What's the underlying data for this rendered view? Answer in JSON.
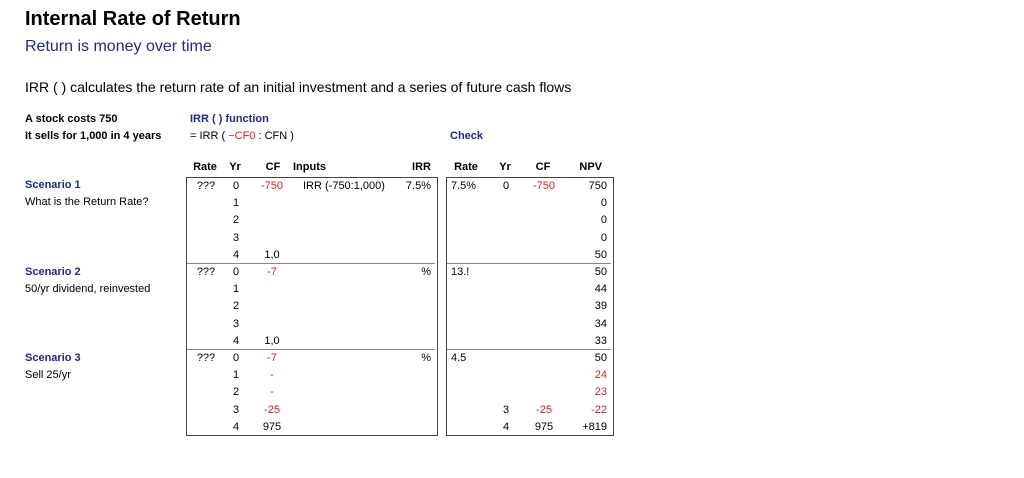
{
  "title": "Internal Rate of Return",
  "subtitle": "Return is money over time",
  "description": "IRR ( ) calculates the return rate of an initial investment and a series of future cash flows",
  "setup": {
    "line1": "A stock costs 750",
    "line2": "It sells for 1,000 in 4 years"
  },
  "function": {
    "heading": "IRR ( ) function",
    "formula_prefix": "= IRR ( ",
    "formula_arg": "−CF0",
    "formula_suffix": " : CFN )"
  },
  "check_heading": "Check",
  "left_headers": [
    "Rate",
    "Yr",
    "CF",
    "Inputs",
    "IRR"
  ],
  "right_headers": [
    "Rate",
    "Yr",
    "CF",
    "NPV"
  ],
  "scenarios": [
    {
      "name": "Scenario 1",
      "desc": "What is the Return Rate?"
    },
    {
      "name": "Scenario 2",
      "desc": "50/yr dividend, reinvested"
    },
    {
      "name": "Scenario 3",
      "desc": "Sell 25/yr"
    }
  ],
  "left_rows": [
    {
      "rate": "???",
      "yr": "0",
      "cf": "-750",
      "inputs": "IRR (-750:1,000)",
      "irr": "7.5%"
    },
    {
      "rate": "",
      "yr": "1",
      "cf": "",
      "inputs": "",
      "irr": ""
    },
    {
      "rate": "",
      "yr": "2",
      "cf": "",
      "inputs": "",
      "irr": ""
    },
    {
      "rate": "",
      "yr": "3",
      "cf": "",
      "inputs": "",
      "irr": ""
    },
    {
      "rate": "",
      "yr": "4",
      "cf": "1,0",
      "inputs": "",
      "irr": ""
    },
    {
      "rate": "???",
      "yr": "0",
      "cf": "-7",
      "inputs": "",
      "irr": "%"
    },
    {
      "rate": "",
      "yr": "1",
      "cf": "",
      "inputs": "",
      "irr": ""
    },
    {
      "rate": "",
      "yr": "2",
      "cf": "",
      "inputs": "",
      "irr": ""
    },
    {
      "rate": "",
      "yr": "3",
      "cf": "",
      "inputs": "",
      "irr": ""
    },
    {
      "rate": "",
      "yr": "4",
      "cf": "1,0",
      "inputs": "",
      "irr": ""
    },
    {
      "rate": "???",
      "yr": "0",
      "cf": "-7",
      "inputs": "",
      "irr": "%"
    },
    {
      "rate": "",
      "yr": "1",
      "cf": "-",
      "inputs": "",
      "irr": ""
    },
    {
      "rate": "",
      "yr": "2",
      "cf": "-",
      "inputs": "",
      "irr": ""
    },
    {
      "rate": "",
      "yr": "3",
      "cf": "-25",
      "inputs": "",
      "irr": ""
    },
    {
      "rate": "",
      "yr": "4",
      "cf": "975",
      "inputs": "",
      "irr": ""
    }
  ],
  "right_rows": [
    {
      "rate": "7.5%",
      "yr": "0",
      "cf": "-750",
      "npv": "750"
    },
    {
      "rate": "",
      "yr": "",
      "cf": "",
      "npv": "0"
    },
    {
      "rate": "",
      "yr": "",
      "cf": "",
      "npv": "0"
    },
    {
      "rate": "",
      "yr": "",
      "cf": "",
      "npv": "0"
    },
    {
      "rate": "",
      "yr": "",
      "cf": "",
      "npv": "50"
    },
    {
      "rate": "13.!",
      "yr": "",
      "cf": "",
      "npv": "50"
    },
    {
      "rate": "",
      "yr": "",
      "cf": "",
      "npv": "44"
    },
    {
      "rate": "",
      "yr": "",
      "cf": "",
      "npv": "39"
    },
    {
      "rate": "",
      "yr": "",
      "cf": "",
      "npv": "34"
    },
    {
      "rate": "",
      "yr": "",
      "cf": "",
      "npv": "33"
    },
    {
      "rate": "4.5",
      "yr": "",
      "cf": "",
      "npv": "50"
    },
    {
      "rate": "",
      "yr": "",
      "cf": "",
      "npv": "24"
    },
    {
      "rate": "",
      "yr": "",
      "cf": "",
      "npv": "23"
    },
    {
      "rate": "",
      "yr": "3",
      "cf": "-25",
      "npv": "-22"
    },
    {
      "rate": "",
      "yr": "4",
      "cf": "975",
      "npv": "+819"
    }
  ],
  "colors": {
    "navy": "#1f2a8a",
    "negative": "#d42020",
    "border": "#444444"
  }
}
